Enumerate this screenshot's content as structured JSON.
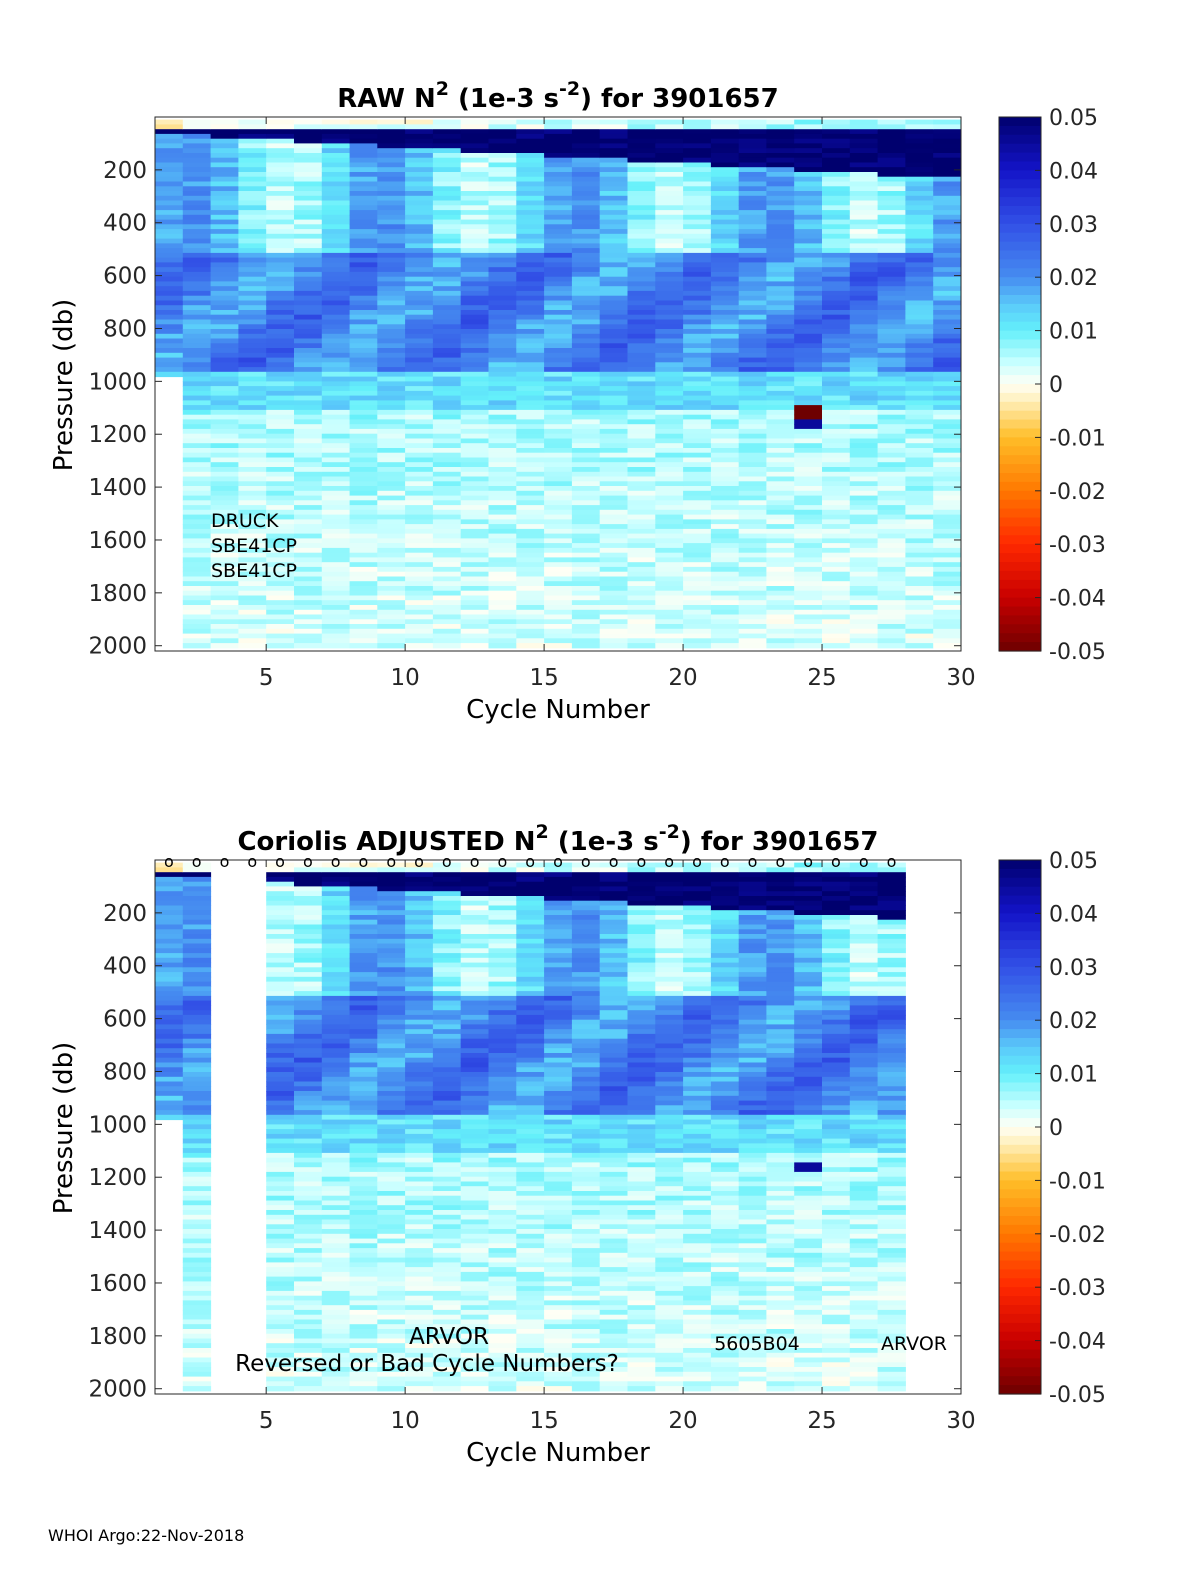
{
  "footer": "WHOI Argo:22-Nov-2018",
  "colorbar": {
    "ticks": [
      "0.05",
      "0.04",
      "0.03",
      "0.02",
      "0.01",
      "0",
      "-0.01",
      "-0.02",
      "-0.03",
      "-0.04",
      "-0.05"
    ],
    "range": [
      -0.05,
      0.05
    ]
  },
  "chart_data": [
    {
      "type": "heatmap",
      "title_parts": [
        "RAW N",
        "2",
        " (1e-3 s",
        "-2",
        ") for 3901657"
      ],
      "xlabel": "Cycle Number",
      "ylabel": "Pressure (db)",
      "xticks": [
        "5",
        "10",
        "15",
        "20",
        "25",
        "30"
      ],
      "yticks": [
        "200",
        "400",
        "600",
        "800",
        "1000",
        "1200",
        "1400",
        "1600",
        "1800",
        "2000"
      ],
      "xlim": [
        1,
        30
      ],
      "ylim": [
        0,
        2020
      ],
      "annotations": [
        "DRUCK",
        "SBE41CP",
        "SBE41CP"
      ],
      "cycles_present": [
        1,
        2,
        3,
        4,
        5,
        6,
        7,
        8,
        9,
        10,
        11,
        12,
        13,
        14,
        15,
        16,
        17,
        18,
        19,
        20,
        21,
        22,
        23,
        24,
        25,
        26,
        27,
        28,
        29
      ],
      "description": "N2 values: strong positive (~0.05) near surface, 0.02-0.03 between 500-950 db, ~0.005 below 1100 db; cycle 25 shows -0.05 anomaly near 1100 db"
    },
    {
      "type": "heatmap",
      "title_parts": [
        "Coriolis  ADJUSTED N",
        "2",
        " (1e-3 s",
        "-2",
        ") for 3901657"
      ],
      "xlabel": "Cycle Number",
      "ylabel": "Pressure (db)",
      "xticks": [
        "5",
        "10",
        "15",
        "20",
        "25",
        "30"
      ],
      "yticks": [
        "200",
        "400",
        "600",
        "800",
        "1000",
        "1200",
        "1400",
        "1600",
        "1800",
        "2000"
      ],
      "xlim": [
        1,
        30
      ],
      "ylim": [
        0,
        2020
      ],
      "marker_cycles": [
        1,
        2,
        3,
        4,
        5,
        6,
        7,
        8,
        9,
        10,
        11,
        12,
        13,
        14,
        15,
        16,
        17,
        18,
        19,
        20,
        21,
        22,
        23,
        24,
        25,
        26,
        27
      ],
      "marker_symbol": "o",
      "annotations_left": [
        "ARVOR",
        "Reversed or Bad Cycle Numbers?"
      ],
      "annotation_mid": "5605B04",
      "annotation_right": "ARVOR",
      "cycles_present": [
        1,
        2,
        5,
        6,
        7,
        8,
        9,
        10,
        11,
        12,
        13,
        14,
        15,
        16,
        17,
        18,
        19,
        20,
        21,
        22,
        23,
        24,
        25,
        26,
        27
      ],
      "description": "Same as raw with cycles 3-4 and 28-29 removed; anomaly removed"
    }
  ]
}
